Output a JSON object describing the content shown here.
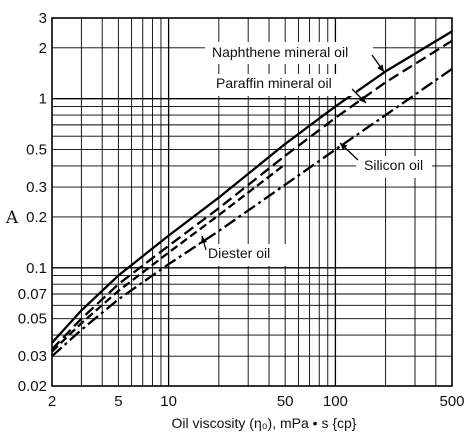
{
  "chart_data": {
    "type": "line",
    "title": "",
    "xlabel": "Oil viscosity (η₀), mPa • s {cp}",
    "ylabel": "A",
    "xscale": "log",
    "yscale": "log",
    "xlim": [
      2,
      500
    ],
    "ylim": [
      0.02,
      3
    ],
    "grid": true,
    "x_ticks": [
      2,
      5,
      10,
      50,
      100,
      500
    ],
    "x_tick_labels": [
      "2",
      "5",
      "10",
      "50",
      "100",
      "500"
    ],
    "y_ticks": [
      0.02,
      0.03,
      0.05,
      0.07,
      0.1,
      0.2,
      0.3,
      0.5,
      1,
      2,
      3
    ],
    "y_tick_labels": [
      "0.02",
      "0.03",
      "0.05",
      "0.07",
      "0.1",
      "0.2",
      "0.3",
      "0.5",
      "1",
      "2",
      "3"
    ],
    "series": [
      {
        "name": "Naphthene mineral oil",
        "style": "solid",
        "x": [
          2,
          3,
          5,
          10,
          20,
          50,
          100,
          200,
          500
        ],
        "y": [
          0.036,
          0.056,
          0.09,
          0.155,
          0.26,
          0.54,
          0.9,
          1.45,
          2.5
        ]
      },
      {
        "name": "Paraffin mineral oil",
        "style": "dashed",
        "x": [
          2,
          3,
          5,
          10,
          20,
          50,
          100,
          200,
          500
        ],
        "y": [
          0.033,
          0.05,
          0.08,
          0.135,
          0.225,
          0.46,
          0.77,
          1.25,
          2.2
        ]
      },
      {
        "name": "Diester oil",
        "style": "dashdot-short",
        "x": [
          2,
          3,
          5,
          10,
          20,
          50
        ],
        "y": [
          0.032,
          0.047,
          0.073,
          0.123,
          0.205,
          0.41
        ]
      },
      {
        "name": "Silicon oil",
        "style": "dashdot",
        "x": [
          2,
          3,
          5,
          10,
          20,
          50,
          100,
          200,
          500
        ],
        "y": [
          0.03,
          0.043,
          0.065,
          0.105,
          0.165,
          0.31,
          0.5,
          0.8,
          1.5
        ]
      }
    ],
    "annotations": [
      {
        "text": "Naphthene mineral oil",
        "target_series": "Naphthene mineral oil"
      },
      {
        "text": "Paraffin mineral oil",
        "target_series": "Paraffin mineral oil"
      },
      {
        "text": "Silicon oil",
        "target_series": "Silicon oil"
      },
      {
        "text": "Diester oil",
        "target_series": "Diester oil"
      }
    ]
  }
}
